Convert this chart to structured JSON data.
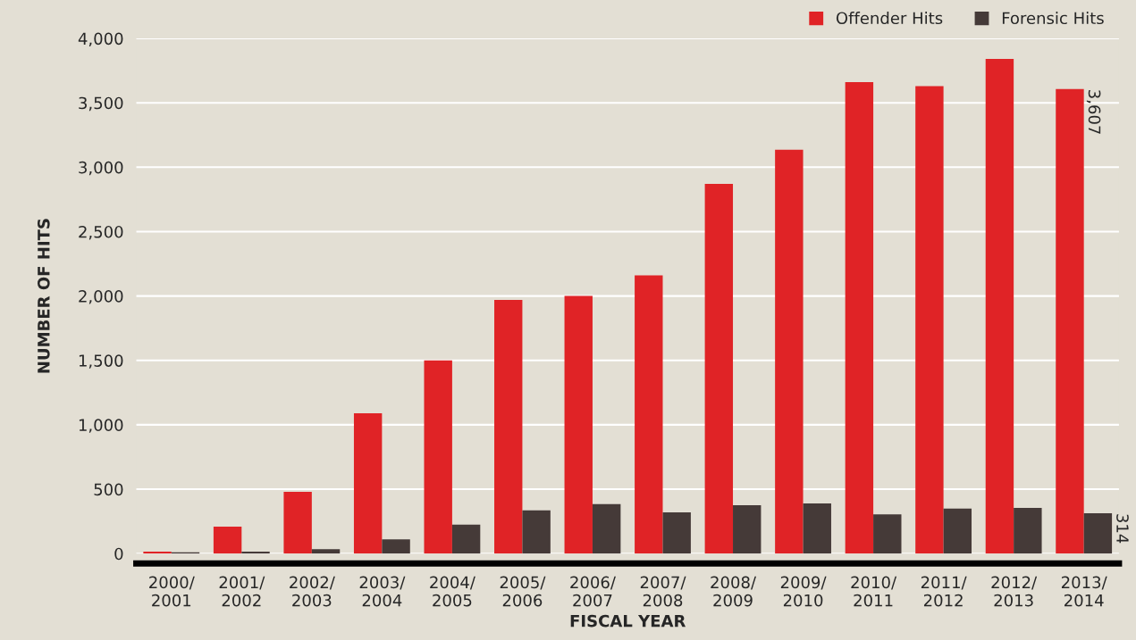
{
  "chart_data": {
    "type": "bar",
    "xlabel": "FISCAL YEAR",
    "ylabel": "NUMBER OF HITS",
    "categories": [
      "2000/\n2001",
      "2001/\n2002",
      "2002/\n2003",
      "2003/\n2004",
      "2004/\n2005",
      "2005/\n2006",
      "2006/\n2007",
      "2007/\n2008",
      "2008/\n2009",
      "2009/\n2010",
      "2010/\n2011",
      "2011/\n2012",
      "2012/\n2013",
      "2013/\n2014"
    ],
    "series": [
      {
        "name": "Offender Hits",
        "color": "#e02326",
        "values": [
          15,
          210,
          480,
          1090,
          1500,
          1970,
          2000,
          2160,
          2870,
          3135,
          3660,
          3630,
          3840,
          3607
        ],
        "value_labels": [
          null,
          null,
          null,
          null,
          null,
          null,
          null,
          null,
          null,
          null,
          null,
          null,
          null,
          "3,607"
        ]
      },
      {
        "name": "Forensic Hits",
        "color": "#453a38",
        "values": [
          10,
          15,
          35,
          110,
          225,
          335,
          385,
          320,
          375,
          390,
          305,
          350,
          355,
          314
        ],
        "value_labels": [
          null,
          null,
          null,
          null,
          null,
          null,
          null,
          null,
          null,
          null,
          null,
          null,
          null,
          "314"
        ]
      }
    ],
    "ylim": [
      0,
      4000
    ],
    "yticks": [
      0,
      500,
      {
        "value": 1000,
        "label": "1,000"
      },
      {
        "value": 1500,
        "label": "1,500"
      },
      {
        "value": 2000,
        "label": "2,000"
      },
      {
        "value": 2500,
        "label": "2,500"
      },
      {
        "value": 3000,
        "label": "3,000"
      },
      {
        "value": 3500,
        "label": "3,500"
      },
      {
        "value": 4000,
        "label": "4,000"
      }
    ],
    "grid": "y",
    "legend": "top right"
  }
}
